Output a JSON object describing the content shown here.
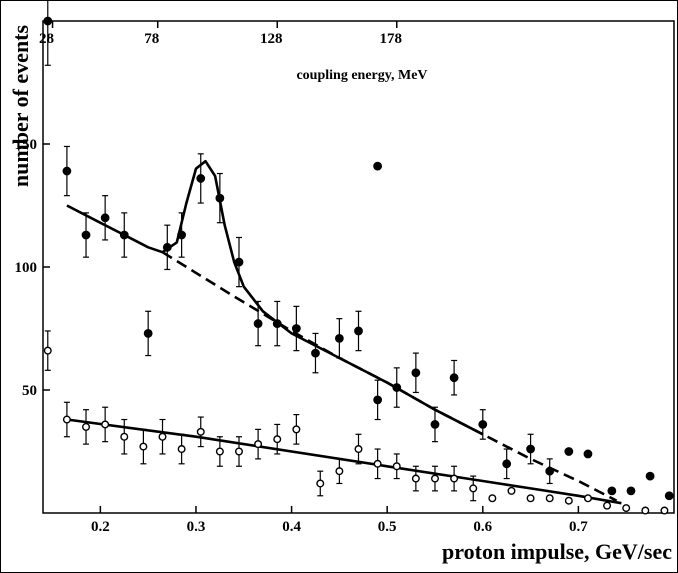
{
  "chart_data": {
    "type": "scatter",
    "title": "",
    "xlabel": "proton impulse,  GeV/sec",
    "ylabel": "number of events",
    "top_axis_label": "coupling energy,  MeV",
    "xlim": [
      0.14,
      0.8
    ],
    "ylim": [
      0,
      200
    ],
    "x_ticks": [
      0.2,
      0.3,
      0.4,
      0.5,
      0.6,
      0.7
    ],
    "x_tick_labels": [
      "0.2",
      "0.3",
      "0.4",
      "0.5",
      "0.6",
      "0.7"
    ],
    "y_ticks": [
      50,
      100,
      150
    ],
    "y_tick_labels": [
      "50",
      "100",
      "150"
    ],
    "top_ticks": [
      0.15,
      0.26,
      0.385,
      0.51
    ],
    "top_tick_labels": [
      "28",
      "78",
      "128",
      "178"
    ],
    "grid": false,
    "series": [
      {
        "marker": "filled",
        "points": [
          [
            0.145,
            200,
            18
          ],
          [
            0.165,
            139,
            10
          ],
          [
            0.185,
            113,
            9
          ],
          [
            0.205,
            120,
            9
          ],
          [
            0.225,
            113,
            9
          ],
          [
            0.25,
            73,
            9
          ],
          [
            0.27,
            108,
            9
          ],
          [
            0.285,
            113,
            9
          ],
          [
            0.305,
            136,
            10
          ],
          [
            0.325,
            128,
            10
          ],
          [
            0.345,
            102,
            10
          ],
          [
            0.365,
            77,
            9
          ],
          [
            0.385,
            77,
            9
          ],
          [
            0.405,
            75,
            9
          ],
          [
            0.425,
            65,
            8
          ],
          [
            0.45,
            71,
            8
          ],
          [
            0.47,
            74,
            8
          ],
          [
            0.49,
            46,
            8
          ],
          [
            0.51,
            51,
            8
          ],
          [
            0.53,
            57,
            8
          ],
          [
            0.55,
            36,
            7
          ],
          [
            0.57,
            55,
            7
          ],
          [
            0.49,
            141,
            0
          ],
          [
            0.6,
            36,
            6
          ],
          [
            0.625,
            20,
            6
          ],
          [
            0.65,
            26,
            6
          ],
          [
            0.67,
            17,
            5
          ],
          [
            0.69,
            25,
            0
          ],
          [
            0.71,
            24,
            0
          ],
          [
            0.735,
            9,
            0
          ],
          [
            0.755,
            9,
            0
          ],
          [
            0.775,
            15,
            0
          ],
          [
            0.795,
            7,
            0
          ]
        ]
      },
      {
        "marker": "open",
        "points": [
          [
            0.145,
            66,
            8
          ],
          [
            0.165,
            38,
            7
          ],
          [
            0.185,
            35,
            7
          ],
          [
            0.205,
            36,
            7
          ],
          [
            0.225,
            31,
            7
          ],
          [
            0.245,
            27,
            7
          ],
          [
            0.265,
            31,
            7
          ],
          [
            0.285,
            26,
            6
          ],
          [
            0.305,
            33,
            6
          ],
          [
            0.325,
            25,
            6
          ],
          [
            0.345,
            25,
            6
          ],
          [
            0.365,
            28,
            6
          ],
          [
            0.385,
            30,
            6
          ],
          [
            0.405,
            34,
            6
          ],
          [
            0.43,
            12,
            5
          ],
          [
            0.45,
            17,
            5
          ],
          [
            0.47,
            26,
            6
          ],
          [
            0.49,
            20,
            6
          ],
          [
            0.51,
            19,
            5
          ],
          [
            0.53,
            14,
            5
          ],
          [
            0.55,
            14,
            5
          ],
          [
            0.57,
            14,
            5
          ],
          [
            0.59,
            10,
            5
          ],
          [
            0.61,
            6,
            0
          ],
          [
            0.63,
            9,
            0
          ],
          [
            0.65,
            6,
            0
          ],
          [
            0.67,
            6,
            0
          ],
          [
            0.69,
            5,
            0
          ],
          [
            0.71,
            6,
            0
          ],
          [
            0.73,
            3,
            0
          ],
          [
            0.75,
            2,
            0
          ],
          [
            0.77,
            1,
            0
          ],
          [
            0.79,
            1,
            0
          ]
        ]
      }
    ],
    "fits": [
      {
        "style": "solid",
        "points": [
          [
            0.165,
            125
          ],
          [
            0.195,
            119
          ],
          [
            0.225,
            113
          ],
          [
            0.25,
            108
          ],
          [
            0.265,
            106
          ],
          [
            0.28,
            110
          ],
          [
            0.29,
            126
          ],
          [
            0.3,
            140
          ],
          [
            0.31,
            143
          ],
          [
            0.32,
            137
          ],
          [
            0.33,
            117
          ],
          [
            0.34,
            102
          ],
          [
            0.35,
            92
          ],
          [
            0.37,
            82
          ],
          [
            0.4,
            73
          ],
          [
            0.45,
            63
          ],
          [
            0.5,
            53
          ],
          [
            0.55,
            42
          ],
          [
            0.6,
            32
          ]
        ]
      },
      {
        "style": "dashed",
        "points": [
          [
            0.265,
            106
          ],
          [
            0.34,
            88
          ],
          [
            0.4,
            74
          ],
          [
            0.45,
            63
          ],
          [
            0.5,
            53
          ],
          [
            0.55,
            42
          ],
          [
            0.6,
            32
          ],
          [
            0.65,
            22
          ],
          [
            0.7,
            13
          ],
          [
            0.74,
            5
          ]
        ]
      },
      {
        "style": "solid",
        "points": [
          [
            0.165,
            38
          ],
          [
            0.3,
            31
          ],
          [
            0.5,
            19
          ],
          [
            0.6,
            13
          ],
          [
            0.65,
            10
          ],
          [
            0.7,
            7
          ],
          [
            0.745,
            4
          ]
        ]
      }
    ]
  }
}
